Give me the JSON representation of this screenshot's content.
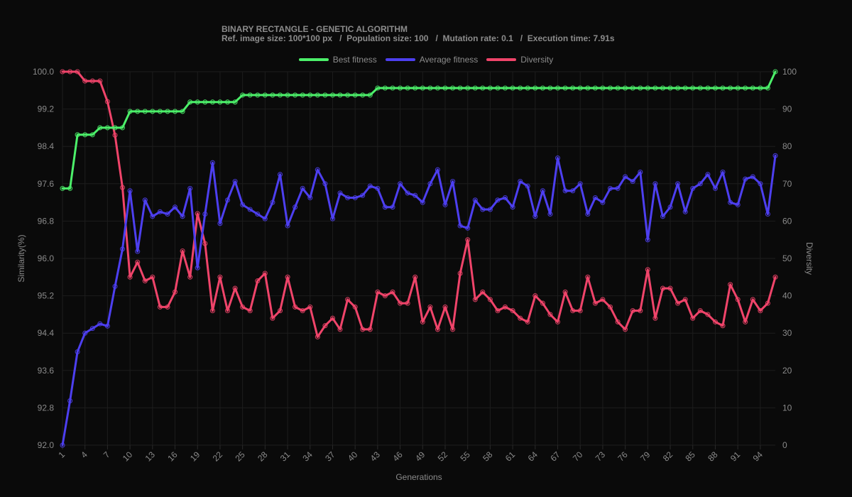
{
  "header": {
    "title": "BINARY RECTANGLE - GENETIC ALGORITHM",
    "subtitle": "Ref. image size: 100*100 px   /  Population size: 100   /  Mutation rate: 0.1   /  Execution time: 7.91s"
  },
  "colors": {
    "best": "#4cf06a",
    "average": "#4d3ff0",
    "diversity": "#f0446a",
    "grid": "#1d1d1d",
    "text": "#8a8a8a"
  },
  "chart_data": {
    "type": "line",
    "xlabel": "Generations",
    "ylabel": "Similarity(%)",
    "y2label": "Diversity",
    "ylim": [
      92,
      100
    ],
    "y2lim": [
      0,
      100
    ],
    "yticks": [
      "92.0",
      "92.8",
      "93.6",
      "94.4",
      "95.2",
      "96.0",
      "96.8",
      "97.6",
      "98.4",
      "99.2",
      "100.0"
    ],
    "y2ticks": [
      "0",
      "10",
      "20",
      "30",
      "40",
      "50",
      "60",
      "70",
      "80",
      "90",
      "100"
    ],
    "xticks": [
      "1",
      "4",
      "7",
      "10",
      "13",
      "16",
      "19",
      "22",
      "25",
      "28",
      "31",
      "34",
      "37",
      "40",
      "43",
      "46",
      "49",
      "52",
      "55",
      "58",
      "61",
      "64",
      "67",
      "70",
      "73",
      "76",
      "79",
      "82",
      "85",
      "88",
      "91",
      "94"
    ],
    "x_min": 1,
    "x_max": 96,
    "grid": true,
    "legend_position": "top",
    "series": [
      {
        "name": "Best fitness",
        "axis": "left",
        "values": [
          97.5,
          97.5,
          98.65,
          98.65,
          98.65,
          98.8,
          98.8,
          98.8,
          98.8,
          99.15,
          99.15,
          99.15,
          99.15,
          99.15,
          99.15,
          99.15,
          99.15,
          99.35,
          99.35,
          99.35,
          99.35,
          99.35,
          99.35,
          99.35,
          99.5,
          99.5,
          99.5,
          99.5,
          99.5,
          99.5,
          99.5,
          99.5,
          99.5,
          99.5,
          99.5,
          99.5,
          99.5,
          99.5,
          99.5,
          99.5,
          99.5,
          99.5,
          99.65,
          99.65,
          99.65,
          99.65,
          99.65,
          99.65,
          99.65,
          99.65,
          99.65,
          99.65,
          99.65,
          99.65,
          99.65,
          99.65,
          99.65,
          99.65,
          99.65,
          99.65,
          99.65,
          99.65,
          99.65,
          99.65,
          99.65,
          99.65,
          99.65,
          99.65,
          99.65,
          99.65,
          99.65,
          99.65,
          99.65,
          99.65,
          99.65,
          99.65,
          99.65,
          99.65,
          99.65,
          99.65,
          99.65,
          99.65,
          99.65,
          99.65,
          99.65,
          99.65,
          99.65,
          99.65,
          99.65,
          99.65,
          99.65,
          99.65,
          99.65,
          99.65,
          99.65,
          100.0
        ]
      },
      {
        "name": "Average fitness",
        "axis": "left",
        "values": [
          92.0,
          92.95,
          94.0,
          94.4,
          94.5,
          94.6,
          94.55,
          95.4,
          96.2,
          97.45,
          96.15,
          97.25,
          96.9,
          97.0,
          96.95,
          97.1,
          96.9,
          97.5,
          95.8,
          96.95,
          98.05,
          96.75,
          97.25,
          97.65,
          97.15,
          97.05,
          96.95,
          96.85,
          97.2,
          97.8,
          96.7,
          97.1,
          97.5,
          97.3,
          97.9,
          97.6,
          96.85,
          97.4,
          97.3,
          97.3,
          97.35,
          97.55,
          97.5,
          97.1,
          97.1,
          97.6,
          97.4,
          97.35,
          97.2,
          97.6,
          97.9,
          97.15,
          97.65,
          96.7,
          96.65,
          97.25,
          97.05,
          97.05,
          97.25,
          97.3,
          97.1,
          97.65,
          97.55,
          96.9,
          97.45,
          96.95,
          98.15,
          97.45,
          97.45,
          97.6,
          96.95,
          97.3,
          97.2,
          97.5,
          97.5,
          97.75,
          97.65,
          97.85,
          96.4,
          97.6,
          96.9,
          97.1,
          97.6,
          97.0,
          97.5,
          97.6,
          97.8,
          97.5,
          97.85,
          97.2,
          97.15,
          97.7,
          97.75,
          97.6,
          96.95,
          98.2
        ]
      },
      {
        "name": "Diversity",
        "axis": "right",
        "values": [
          100,
          100,
          100,
          97.5,
          97.5,
          97.5,
          92,
          83,
          69,
          45,
          49,
          44,
          45,
          37,
          37,
          41,
          52,
          45,
          62,
          54,
          36,
          45,
          36,
          42,
          37,
          36,
          44,
          46,
          34,
          36,
          45,
          37,
          36,
          37,
          29,
          32,
          34,
          31,
          39,
          37,
          31,
          31,
          41,
          40,
          41,
          38,
          38,
          45,
          33,
          37,
          31,
          37,
          31,
          46,
          55,
          39,
          41,
          39,
          36,
          37,
          36,
          34,
          33,
          40,
          38,
          35,
          33,
          41,
          36,
          36,
          45,
          38,
          39,
          37,
          33,
          31,
          36,
          36,
          47,
          34,
          42,
          42,
          38,
          39,
          34,
          36,
          35,
          33,
          32,
          43,
          39,
          33,
          39,
          36,
          38,
          45
        ]
      }
    ]
  }
}
